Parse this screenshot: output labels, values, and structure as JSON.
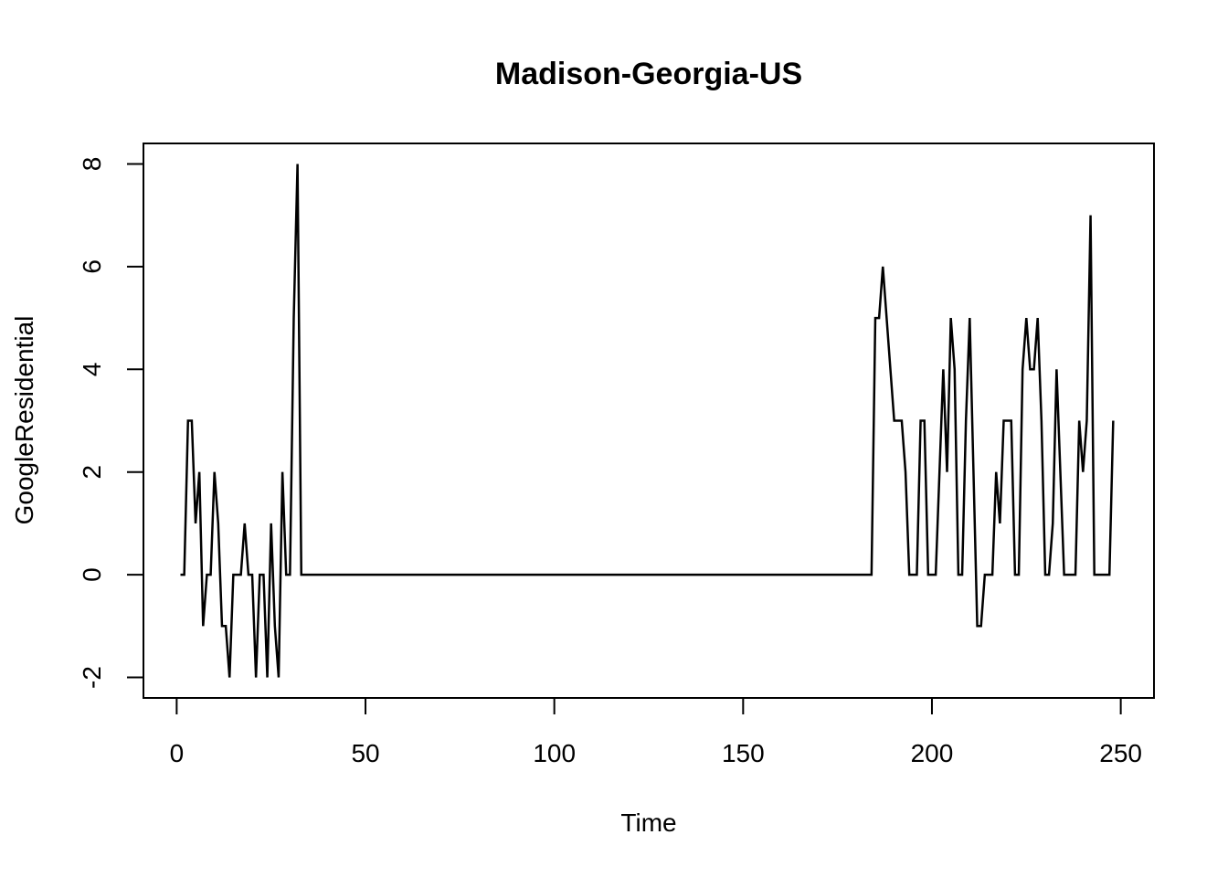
{
  "chart_data": {
    "type": "line",
    "title": "Madison-Georgia-US",
    "xlabel": "Time",
    "ylabel": "GoogleResidential",
    "xlim": [
      -8.8,
      258.8
    ],
    "ylim": [
      -2.4,
      8.4
    ],
    "xticks": [
      0,
      50,
      100,
      150,
      200,
      250
    ],
    "yticks": [
      -2,
      0,
      2,
      4,
      6,
      8
    ],
    "grid": false,
    "line_color": "#000000",
    "series": [
      {
        "x": [
          1,
          2,
          3,
          4,
          5,
          6,
          7,
          8,
          9,
          10,
          11,
          12,
          13,
          14,
          15,
          16,
          17,
          18,
          19,
          20,
          21,
          22,
          23,
          24,
          25,
          26,
          27,
          28,
          29,
          30,
          31,
          32,
          33,
          34,
          35,
          184,
          185,
          186,
          187,
          188,
          189,
          190,
          191,
          192,
          193,
          194,
          195,
          196,
          197,
          198,
          199,
          200,
          201,
          202,
          203,
          204,
          205,
          206,
          207,
          208,
          209,
          210,
          211,
          212,
          213,
          214,
          215,
          216,
          217,
          218,
          219,
          220,
          221,
          222,
          223,
          224,
          225,
          226,
          227,
          228,
          229,
          230,
          231,
          232,
          233,
          234,
          235,
          236,
          237,
          238,
          239,
          240,
          241,
          242,
          243,
          244,
          245,
          246,
          247,
          248
        ],
        "y": [
          0,
          0,
          3,
          3,
          1,
          2,
          -1,
          0,
          0,
          2,
          1,
          -1,
          -1,
          -2,
          0,
          0,
          0,
          1,
          0,
          0,
          -2,
          0,
          0,
          -2,
          1,
          -1,
          -2,
          2,
          0,
          0,
          5,
          8,
          0,
          0,
          0,
          0,
          5,
          5,
          6,
          5,
          4,
          3,
          3,
          3,
          2,
          0,
          0,
          0,
          3,
          3,
          0,
          0,
          0,
          2,
          4,
          2,
          5,
          4,
          0,
          0,
          3,
          5,
          2,
          -1,
          -1,
          0,
          0,
          0,
          2,
          1,
          3,
          3,
          3,
          0,
          0,
          4,
          5,
          4,
          4,
          5,
          3,
          0,
          0,
          1,
          4,
          2,
          0,
          0,
          0,
          0,
          3,
          2,
          3,
          7,
          0,
          0,
          0,
          0,
          0,
          3
        ]
      }
    ]
  }
}
